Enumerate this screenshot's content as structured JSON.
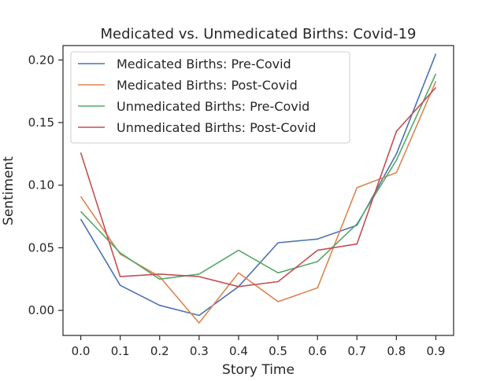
{
  "chart_data": {
    "type": "line",
    "title": "Medicated vs. Unmedicated Births: Covid-19",
    "xlabel": "Story Time",
    "ylabel": "Sentiment",
    "x": [
      0.0,
      0.1,
      0.2,
      0.3,
      0.4,
      0.5,
      0.6,
      0.7,
      0.8,
      0.9
    ],
    "x_ticks": [
      "0.0",
      "0.1",
      "0.2",
      "0.3",
      "0.4",
      "0.5",
      "0.6",
      "0.7",
      "0.8",
      "0.9"
    ],
    "y_ticks": [
      0.0,
      0.05,
      0.1,
      0.15,
      0.2
    ],
    "y_tick_labels": [
      "0.00",
      "0.05",
      "0.10",
      "0.15",
      "0.20"
    ],
    "xlim": [
      -0.045,
      0.945
    ],
    "ylim": [
      -0.02,
      0.2115
    ],
    "grid": false,
    "legend_position": "top-left",
    "series": [
      {
        "name": "Medicated Births: Pre-Covid",
        "color": "#4c72b0",
        "values": [
          0.073,
          0.02,
          0.004,
          -0.004,
          0.019,
          0.054,
          0.057,
          0.068,
          0.125,
          0.205
        ]
      },
      {
        "name": "Medicated Births: Post-Covid",
        "color": "#dd8452",
        "values": [
          0.091,
          0.045,
          0.027,
          -0.01,
          0.03,
          0.007,
          0.018,
          0.098,
          0.11,
          0.183
        ]
      },
      {
        "name": "Unmedicated Births: Pre-Covid",
        "color": "#55a868",
        "values": [
          0.079,
          0.046,
          0.025,
          0.029,
          0.048,
          0.03,
          0.039,
          0.069,
          0.12,
          0.189
        ]
      },
      {
        "name": "Unmedicated Births: Post-Covid",
        "color": "#c44e52",
        "values": [
          0.126,
          0.027,
          0.029,
          0.027,
          0.019,
          0.023,
          0.048,
          0.053,
          0.143,
          0.178
        ]
      }
    ]
  }
}
